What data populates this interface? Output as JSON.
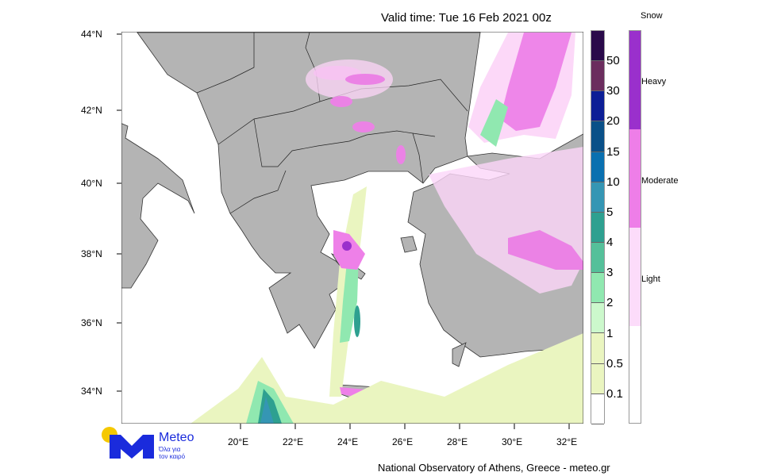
{
  "header": {
    "title": "Valid time: Tue 16 Feb 2021 00z"
  },
  "axes": {
    "lat_labels": [
      "44°N",
      "42°N",
      "40°N",
      "38°N",
      "36°N",
      "34°N"
    ],
    "lon_labels": [
      "20°E",
      "22°E",
      "24°E",
      "26°E",
      "28°E",
      "30°E",
      "32°E"
    ]
  },
  "rain_legend": {
    "labels": [
      "50",
      "30",
      "20",
      "15",
      "10",
      "5",
      "4",
      "3",
      "2",
      "1",
      "0.5",
      "0.1"
    ],
    "colors": [
      "#2a0a4a",
      "#6b2d5e",
      "#0c1e96",
      "#0a5088",
      "#0a70b0",
      "#3596b4",
      "#2ea090",
      "#55c09a",
      "#90e8b0",
      "#ccf8cc",
      "#eaf5c0",
      "#eaf5c0",
      "#ffffff"
    ]
  },
  "snow_legend": {
    "title": "Snow",
    "levels": [
      "Heavy",
      "Moderate",
      "Light"
    ],
    "colors": [
      "#9a30cc",
      "#ee7ee8",
      "#fcdcfa",
      "#ffffff"
    ]
  },
  "logo": {
    "name": "Meteo",
    "tagline_1": "Όλα για",
    "tagline_2": "τον καιρό"
  },
  "footer": {
    "credit": "National Observatory of Athens, Greece - meteo.gr"
  }
}
